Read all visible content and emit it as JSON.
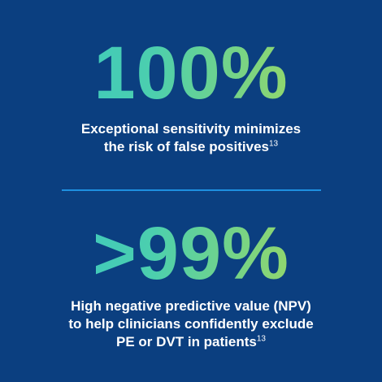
{
  "colors": {
    "background": "#0b3f80",
    "gradient_start": "#33c4c8",
    "gradient_end": "#b6dc4e",
    "divider": "#1e8fe0",
    "text": "#ffffff"
  },
  "stat_sensitivity": {
    "value": "100%",
    "line1": "Exceptional sensitivity minimizes",
    "line2": "the risk of false positives",
    "reference": "13"
  },
  "stat_npv": {
    "value": ">99%",
    "line1": "High negative predictive value (NPV)",
    "line2": "to help clinicians confidently exclude",
    "line3": "PE or DVT in patients",
    "reference": "13"
  }
}
